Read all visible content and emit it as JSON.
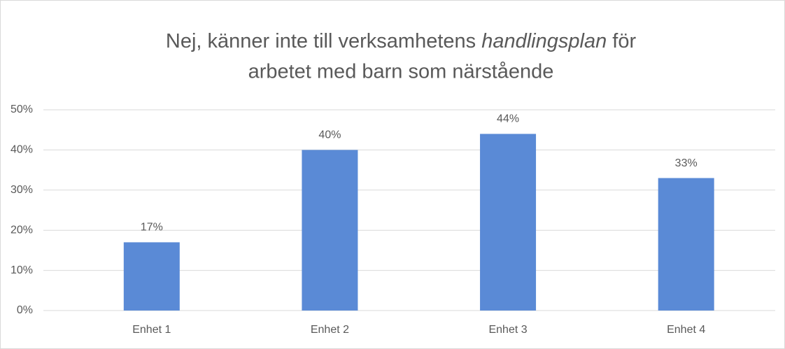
{
  "chart_data": {
    "type": "bar",
    "title": [
      "Nej, känner inte till verksamhetens",
      "handlingsplan",
      "för",
      "arbetet med barn som närstående"
    ],
    "categories": [
      "Enhet 1",
      "Enhet 2",
      "Enhet 3",
      "Enhet 4"
    ],
    "values": [
      17,
      40,
      44,
      33
    ],
    "value_labels": [
      "17%",
      "40%",
      "44%",
      "33%"
    ],
    "color": "#5a8ad6",
    "ylim": [
      0,
      50
    ],
    "yticks": [
      {
        "value": 0,
        "label": "0%"
      },
      {
        "value": 10,
        "label": "10%"
      },
      {
        "value": 20,
        "label": "20%"
      },
      {
        "value": 30,
        "label": "30%"
      },
      {
        "value": 40,
        "label": "40%"
      },
      {
        "value": 50,
        "label": "50%"
      }
    ],
    "grid": true
  }
}
